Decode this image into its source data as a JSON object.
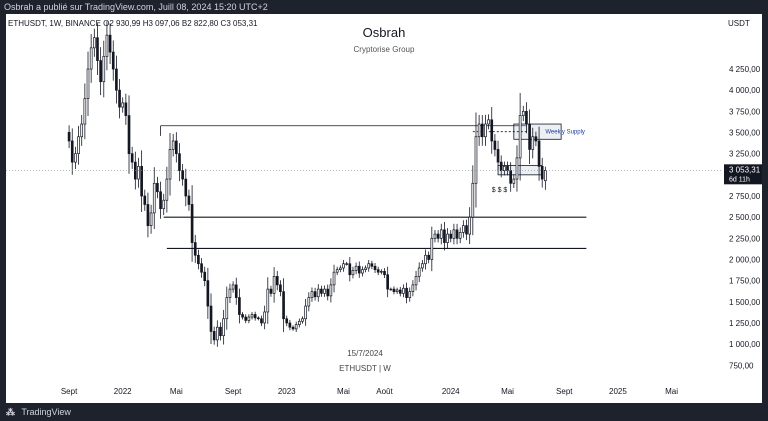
{
  "top_bar": {
    "text": "Osbrah a publié sur TradingView.com, Juill 08, 2024 15:20 UTC+2"
  },
  "header": {
    "symbol_line": "ETHUSDT, 1W, BINANCE  O2 930,99  H3 097,06  B2 822,80  C3 053,31",
    "currency": "USDT",
    "title": "Osbrah",
    "subtitle": "Cryptorise Group"
  },
  "watermark": {
    "date": "15/7/2024",
    "name": "ETHUSDT | W"
  },
  "footer": {
    "logo_text": "TradingView"
  },
  "colors": {
    "candle": "#131722",
    "background": "#ffffff",
    "frame": "#1e222d",
    "annotation": "#1a3fa0",
    "current_price_bg": "#131722"
  },
  "chart_data": {
    "type": "candlestick",
    "title": "Osbrah",
    "subtitle": "Cryptorise Group",
    "symbol": "ETHUSDT",
    "interval": "1W",
    "exchange": "BINANCE",
    "ohlc_last": {
      "open": 2930.99,
      "high": 3097.06,
      "low": 2822.8,
      "close": 3053.31
    },
    "y_axis": {
      "unit": "USDT",
      "ylim": [
        600,
        4900
      ],
      "ticks": [
        750,
        1000,
        1250,
        1500,
        1750,
        2000,
        2250,
        2500,
        2750,
        3000,
        3250,
        3500,
        3750,
        4000,
        4250
      ],
      "tick_labels": [
        "750,00",
        "1 000,00",
        "1 250,00",
        "1 500,00",
        "1 750,00",
        "2 000,00",
        "2 250,00",
        "2 500,00",
        "2 750,00",
        "3 000,00",
        "3 250,00",
        "3 500,00",
        "3 750,00",
        "4 000,00",
        "4 250,00"
      ]
    },
    "x_axis": {
      "range_weeks": [
        -20,
        207
      ],
      "ticks": [
        {
          "label": "Sept",
          "week": 0
        },
        {
          "label": "2022",
          "week": 17
        },
        {
          "label": "Mai",
          "week": 34
        },
        {
          "label": "Sept",
          "week": 52
        },
        {
          "label": "2023",
          "week": 69
        },
        {
          "label": "Mai",
          "week": 87
        },
        {
          "label": "Août",
          "week": 100
        },
        {
          "label": "2024",
          "week": 121
        },
        {
          "label": "Mai",
          "week": 139
        },
        {
          "label": "Sept",
          "week": 157
        },
        {
          "label": "2025",
          "week": 174
        },
        {
          "label": "Mai",
          "week": 191
        }
      ]
    },
    "levels": [
      {
        "name": "supply zone box top",
        "value": 3580,
        "from_week": 29,
        "to_week": 145
      },
      {
        "name": "support",
        "value": 2500,
        "from_week": 30,
        "to_week": 164
      },
      {
        "name": "support",
        "value": 2130,
        "from_week": 31,
        "to_week": 164
      }
    ],
    "zones": [
      {
        "label": "Weekly Supply",
        "from_value": 3420,
        "to_value": 3600,
        "from_week": 141,
        "to_week": 156
      },
      {
        "label": "",
        "from_value": 3000,
        "to_value": 3110,
        "from_week": 136,
        "to_week": 150
      }
    ],
    "annotations": [
      {
        "text": "Weekly Supply",
        "week": 151,
        "value": 3510
      },
      {
        "text": "$ $ $",
        "week": 134,
        "value": 2820
      }
    ],
    "current_price": {
      "value": 3053.31,
      "label": "3 053,31",
      "countdown": "6d 11h"
    },
    "closes": [
      3400,
      3150,
      3250,
      3450,
      3600,
      3900,
      4250,
      4500,
      4620,
      4350,
      4100,
      4400,
      4650,
      4450,
      4250,
      4000,
      3800,
      3850,
      3700,
      3250,
      3150,
      2950,
      3100,
      2750,
      2650,
      2400,
      2550,
      2900,
      2800,
      2600,
      2700,
      2950,
      3300,
      3400,
      3250,
      3050,
      2950,
      2750,
      2650,
      2200,
      2050,
      1950,
      1850,
      1750,
      1450,
      1150,
      1050,
      1200,
      1100,
      1300,
      1550,
      1650,
      1700,
      1550,
      1350,
      1320,
      1280,
      1320,
      1350,
      1310,
      1300,
      1250,
      1380,
      1650,
      1600,
      1800,
      1700,
      1620,
      1300,
      1250,
      1200,
      1180,
      1230,
      1270,
      1300,
      1450,
      1550,
      1620,
      1560,
      1650,
      1600,
      1650,
      1570,
      1700,
      1850,
      1880,
      1900,
      1950,
      1950,
      1820,
      1870,
      1920,
      1840,
      1880,
      1900,
      1950,
      1920,
      1880,
      1850,
      1860,
      1820,
      1650,
      1650,
      1620,
      1640,
      1600,
      1660,
      1550,
      1620,
      1700,
      1800,
      1900,
      1950,
      2050,
      2000,
      2250,
      2300,
      2250,
      2350,
      2200,
      2300,
      2250,
      2350,
      2250,
      2320,
      2400,
      2300,
      2500,
      2900,
      3450,
      3600,
      3450,
      3600,
      3650,
      3400,
      3300,
      3150,
      3050,
      3100,
      3050,
      2900,
      2950,
      3200,
      3700,
      3750,
      3600,
      3300,
      3450,
      3400,
      3100,
      2950,
      3053
    ]
  }
}
